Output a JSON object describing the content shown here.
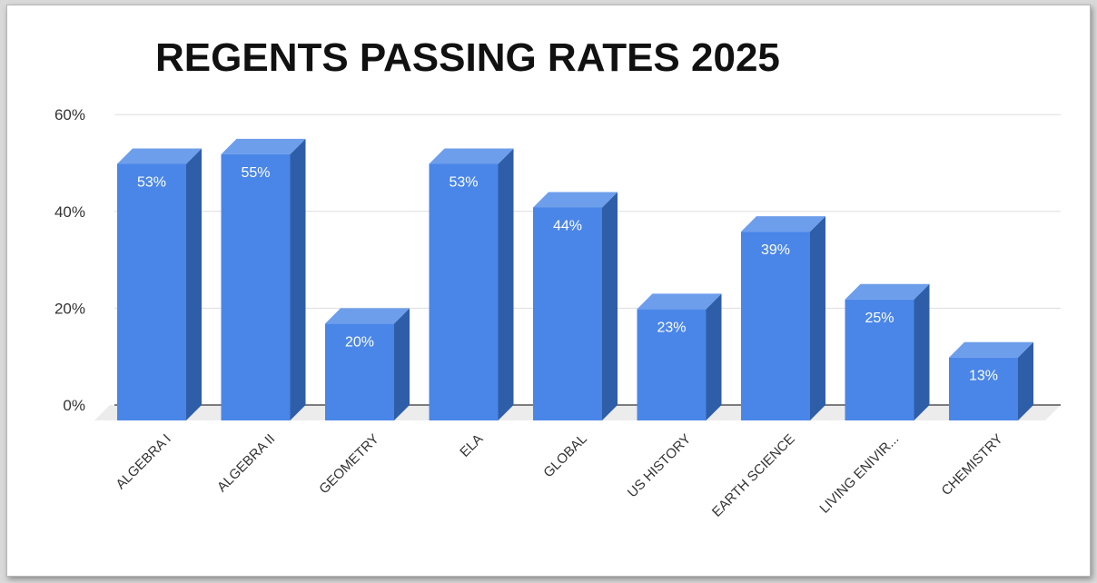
{
  "chart_data": {
    "type": "bar",
    "title": "REGENTS PASSING RATES 2025",
    "xlabel": "",
    "ylabel": "",
    "ylim": [
      0,
      60
    ],
    "yticks": [
      0,
      20,
      40,
      60
    ],
    "ytick_labels": [
      "0%",
      "20%",
      "40%",
      "60%"
    ],
    "grid": true,
    "legend": "none",
    "categories": [
      "ALGEBRA I",
      "ALGEBRA II",
      "GEOMETRY",
      "ELA",
      "GLOBAL",
      "US HISTORY",
      "EARTH SCIENCE",
      "LIVING ENIVIR...",
      "CHEMISTRY"
    ],
    "values": [
      53,
      55,
      20,
      53,
      44,
      23,
      39,
      25,
      13
    ],
    "data_labels": [
      "53%",
      "55%",
      "20%",
      "53%",
      "44%",
      "23%",
      "39%",
      "25%",
      "13%"
    ],
    "colors": {
      "front": "#4a86e8",
      "top": "#6d9eeb",
      "side": "#2f5ea8",
      "floor": "#ececec"
    }
  }
}
